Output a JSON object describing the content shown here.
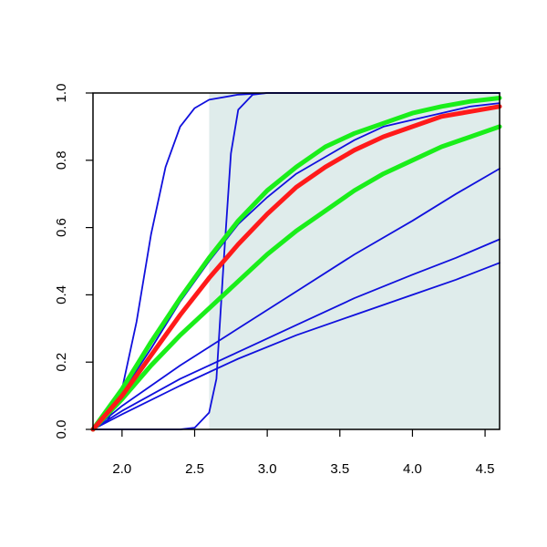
{
  "chart_data": {
    "type": "line",
    "title": "",
    "xlabel": "",
    "ylabel": "",
    "xlim": [
      1.8,
      4.6
    ],
    "ylim": [
      0,
      1
    ],
    "x_ticks": [
      "2.0",
      "2.5",
      "3.0",
      "3.5",
      "4.0",
      "4.5"
    ],
    "y_ticks": [
      "0.0",
      "0.2",
      "0.4",
      "0.6",
      "0.8",
      "1.0"
    ],
    "shaded_region": {
      "x_from": 2.6,
      "x_to": 4.6,
      "color": "#dfeceb"
    },
    "colors": {
      "blue": "#1010dd",
      "red": "#ff1a1a",
      "green": "#1aee1a",
      "axis": "#000000"
    },
    "series": [
      {
        "color": "blue",
        "style": "thin",
        "points": [
          [
            1.8,
            0
          ],
          [
            1.9,
            0.025
          ],
          [
            2.0,
            0.12
          ],
          [
            2.1,
            0.32
          ],
          [
            2.2,
            0.58
          ],
          [
            2.3,
            0.78
          ],
          [
            2.4,
            0.9
          ],
          [
            2.5,
            0.955
          ],
          [
            2.6,
            0.98
          ],
          [
            2.8,
            0.995
          ],
          [
            3.0,
            1.0
          ],
          [
            4.6,
            1.0
          ]
        ]
      },
      {
        "color": "blue",
        "style": "thin",
        "points": [
          [
            1.8,
            0
          ],
          [
            2.4,
            0
          ],
          [
            2.5,
            0.005
          ],
          [
            2.6,
            0.05
          ],
          [
            2.65,
            0.15
          ],
          [
            2.7,
            0.5
          ],
          [
            2.75,
            0.82
          ],
          [
            2.8,
            0.95
          ],
          [
            2.9,
            0.995
          ],
          [
            3.0,
            1.0
          ],
          [
            4.6,
            1.0
          ]
        ]
      },
      {
        "color": "blue",
        "style": "thin",
        "points": [
          [
            1.8,
            0
          ],
          [
            2.0,
            0.11
          ],
          [
            2.2,
            0.24
          ],
          [
            2.4,
            0.38
          ],
          [
            2.6,
            0.5
          ],
          [
            2.8,
            0.61
          ],
          [
            3.0,
            0.69
          ],
          [
            3.2,
            0.76
          ],
          [
            3.4,
            0.81
          ],
          [
            3.6,
            0.86
          ],
          [
            3.8,
            0.9
          ],
          [
            4.0,
            0.92
          ],
          [
            4.2,
            0.94
          ],
          [
            4.4,
            0.96
          ],
          [
            4.6,
            0.97
          ]
        ]
      },
      {
        "color": "blue",
        "style": "thin",
        "points": [
          [
            1.8,
            0
          ],
          [
            2.0,
            0.07
          ],
          [
            2.4,
            0.19
          ],
          [
            2.8,
            0.3
          ],
          [
            3.2,
            0.41
          ],
          [
            3.6,
            0.52
          ],
          [
            4.0,
            0.62
          ],
          [
            4.3,
            0.7
          ],
          [
            4.6,
            0.775
          ]
        ]
      },
      {
        "color": "blue",
        "style": "thin",
        "points": [
          [
            1.8,
            0
          ],
          [
            2.0,
            0.055
          ],
          [
            2.4,
            0.15
          ],
          [
            2.8,
            0.23
          ],
          [
            3.2,
            0.31
          ],
          [
            3.6,
            0.39
          ],
          [
            4.0,
            0.46
          ],
          [
            4.3,
            0.51
          ],
          [
            4.6,
            0.565
          ]
        ]
      },
      {
        "color": "blue",
        "style": "thin",
        "points": [
          [
            1.8,
            0
          ],
          [
            2.0,
            0.045
          ],
          [
            2.4,
            0.13
          ],
          [
            2.8,
            0.21
          ],
          [
            3.2,
            0.28
          ],
          [
            3.6,
            0.34
          ],
          [
            4.0,
            0.4
          ],
          [
            4.3,
            0.445
          ],
          [
            4.6,
            0.495
          ]
        ]
      },
      {
        "color": "green",
        "style": "thick",
        "points": [
          [
            1.8,
            0
          ],
          [
            2.0,
            0.12
          ],
          [
            2.2,
            0.26
          ],
          [
            2.4,
            0.39
          ],
          [
            2.6,
            0.51
          ],
          [
            2.8,
            0.62
          ],
          [
            3.0,
            0.71
          ],
          [
            3.2,
            0.78
          ],
          [
            3.4,
            0.84
          ],
          [
            3.6,
            0.88
          ],
          [
            3.8,
            0.91
          ],
          [
            4.0,
            0.94
          ],
          [
            4.2,
            0.96
          ],
          [
            4.4,
            0.975
          ],
          [
            4.6,
            0.985
          ]
        ]
      },
      {
        "color": "green",
        "style": "thick",
        "points": [
          [
            1.8,
            0
          ],
          [
            2.0,
            0.09
          ],
          [
            2.2,
            0.19
          ],
          [
            2.4,
            0.28
          ],
          [
            2.6,
            0.36
          ],
          [
            2.8,
            0.44
          ],
          [
            3.0,
            0.52
          ],
          [
            3.2,
            0.59
          ],
          [
            3.4,
            0.65
          ],
          [
            3.6,
            0.71
          ],
          [
            3.8,
            0.76
          ],
          [
            4.0,
            0.8
          ],
          [
            4.2,
            0.84
          ],
          [
            4.4,
            0.87
          ],
          [
            4.6,
            0.9
          ]
        ]
      },
      {
        "color": "red",
        "style": "thick",
        "points": [
          [
            1.8,
            0
          ],
          [
            2.0,
            0.1
          ],
          [
            2.2,
            0.22
          ],
          [
            2.4,
            0.34
          ],
          [
            2.6,
            0.45
          ],
          [
            2.8,
            0.55
          ],
          [
            3.0,
            0.64
          ],
          [
            3.2,
            0.72
          ],
          [
            3.4,
            0.78
          ],
          [
            3.6,
            0.83
          ],
          [
            3.8,
            0.87
          ],
          [
            4.0,
            0.9
          ],
          [
            4.2,
            0.93
          ],
          [
            4.4,
            0.945
          ],
          [
            4.6,
            0.96
          ]
        ]
      }
    ]
  }
}
